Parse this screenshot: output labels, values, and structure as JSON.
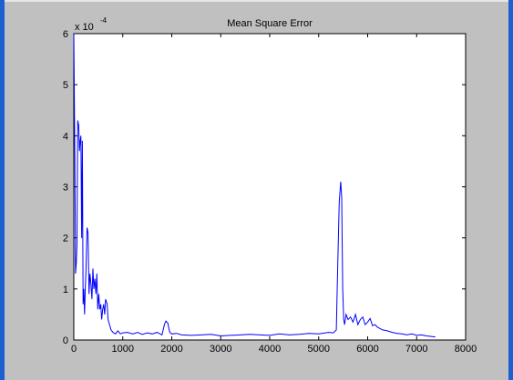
{
  "chart_data": {
    "type": "line",
    "title": "Mean Square Error",
    "xlabel": "",
    "ylabel": "",
    "xlim": [
      0,
      8000
    ],
    "ylim": [
      0,
      6
    ],
    "y_exponent_label": "x 10",
    "y_exponent_power": "-4",
    "x_ticks": [
      0,
      1000,
      2000,
      3000,
      4000,
      5000,
      6000,
      7000,
      8000
    ],
    "x_tick_labels": [
      "0",
      "1000",
      "2000",
      "3000",
      "4000",
      "5000",
      "6000",
      "7000",
      "8000"
    ],
    "y_ticks": [
      0,
      1,
      2,
      3,
      4,
      5,
      6
    ],
    "y_tick_labels": [
      "0",
      "1",
      "2",
      "3",
      "4",
      "5",
      "6"
    ],
    "grid": false,
    "line_color": "#0000ff",
    "series": [
      {
        "x": [
          0,
          20,
          35,
          50,
          65,
          80,
          100,
          115,
          130,
          145,
          160,
          175,
          190,
          205,
          220,
          235,
          250,
          270,
          290,
          310,
          330,
          350,
          370,
          390,
          410,
          430,
          450,
          470,
          490,
          510,
          530,
          550,
          570,
          590,
          610,
          630,
          650,
          680,
          700,
          730,
          760,
          800,
          850,
          900,
          950,
          1000,
          1100,
          1200,
          1300,
          1400,
          1500,
          1600,
          1700,
          1800,
          1850,
          1880,
          1920,
          1960,
          2000,
          2100,
          2200,
          2400,
          2600,
          2800,
          3000,
          3200,
          3400,
          3600,
          3800,
          4000,
          4200,
          4400,
          4600,
          4800,
          5000,
          5200,
          5300,
          5360,
          5390,
          5420,
          5450,
          5470,
          5490,
          5510,
          5530,
          5560,
          5600,
          5650,
          5700,
          5750,
          5800,
          5850,
          5900,
          5950,
          6000,
          6050,
          6100,
          6150,
          6200,
          6300,
          6400,
          6500,
          6600,
          6700,
          6800,
          6900,
          7000,
          7100,
          7200,
          7300,
          7380
        ],
        "y": [
          6.0,
          3.7,
          1.3,
          1.5,
          1.9,
          4.3,
          4.2,
          3.7,
          3.9,
          4.0,
          2.0,
          3.9,
          0.7,
          1.0,
          0.5,
          1.0,
          1.4,
          2.2,
          2.1,
          0.9,
          1.3,
          1.1,
          0.8,
          1.4,
          1.0,
          1.2,
          0.9,
          1.3,
          0.6,
          0.9,
          0.6,
          0.7,
          0.4,
          0.6,
          0.7,
          0.5,
          0.8,
          0.7,
          0.4,
          0.3,
          0.2,
          0.15,
          0.12,
          0.18,
          0.12,
          0.14,
          0.15,
          0.12,
          0.15,
          0.11,
          0.14,
          0.12,
          0.15,
          0.1,
          0.3,
          0.37,
          0.33,
          0.15,
          0.12,
          0.13,
          0.1,
          0.09,
          0.1,
          0.11,
          0.08,
          0.09,
          0.1,
          0.11,
          0.1,
          0.09,
          0.12,
          0.1,
          0.11,
          0.13,
          0.12,
          0.15,
          0.14,
          0.2,
          1.5,
          2.7,
          3.1,
          2.8,
          1.0,
          0.4,
          0.3,
          0.5,
          0.4,
          0.45,
          0.35,
          0.5,
          0.3,
          0.4,
          0.45,
          0.3,
          0.35,
          0.42,
          0.28,
          0.3,
          0.25,
          0.2,
          0.18,
          0.15,
          0.13,
          0.12,
          0.1,
          0.12,
          0.09,
          0.1,
          0.08,
          0.07,
          0.06
        ]
      }
    ]
  }
}
